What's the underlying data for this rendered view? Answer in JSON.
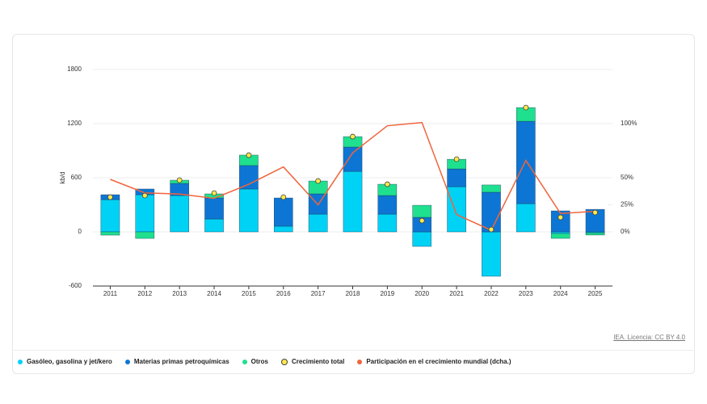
{
  "chart_data": {
    "type": "stacked-bar-line",
    "y_label": "kb/d",
    "source": "IEA. Licencia: CC BY 4.0",
    "categories": [
      "2011",
      "2012",
      "2013",
      "2014",
      "2015",
      "2016",
      "2017",
      "2018",
      "2019",
      "2020",
      "2021",
      "2022",
      "2023",
      "2024",
      "2025"
    ],
    "ylim": [
      -600,
      1800
    ],
    "yticks": [
      -600,
      0,
      600,
      1200,
      1800
    ],
    "y2lim": [
      -50,
      150
    ],
    "y2ticks": [
      {
        "value": 0,
        "label": "0%"
      },
      {
        "value": 25,
        "label": "25%"
      },
      {
        "value": 50,
        "label": "50%"
      },
      {
        "value": 100,
        "label": "100%"
      }
    ],
    "series": [
      {
        "name": "Gasóleo, gasolina y jet/kero",
        "color": "#00d2f5",
        "kind": "bar",
        "values": [
          358,
          412,
          403,
          143,
          475,
          63,
          197,
          671,
          197,
          -161,
          501,
          -492,
          313,
          -18,
          -10
        ]
      },
      {
        "name": "Materias primas petroquímicas",
        "color": "#0d76d4",
        "kind": "bar",
        "values": [
          54,
          63,
          134,
          233,
          260,
          313,
          224,
          269,
          206,
          161,
          197,
          439,
          913,
          233,
          250
        ]
      },
      {
        "name": "Otros",
        "color": "#1fe08e",
        "kind": "bar",
        "values": [
          -36,
          -72,
          36,
          45,
          116,
          0,
          143,
          116,
          125,
          134,
          107,
          81,
          152,
          -54,
          -25
        ]
      },
      {
        "name": "Crecimiento total",
        "color": "#ffe94a",
        "kind": "dot",
        "values": [
          385,
          403,
          573,
          430,
          850,
          385,
          564,
          1056,
          528,
          125,
          806,
          27,
          1378,
          161,
          215
        ]
      },
      {
        "name": "Participación en el crecimiento mundial (dcha.)",
        "color": "#f0643c",
        "kind": "line",
        "axis": "y2",
        "values": [
          48.5,
          36,
          35,
          31,
          44,
          60,
          25,
          73,
          98,
          101,
          16,
          1.5,
          66,
          17,
          19
        ]
      }
    ]
  }
}
